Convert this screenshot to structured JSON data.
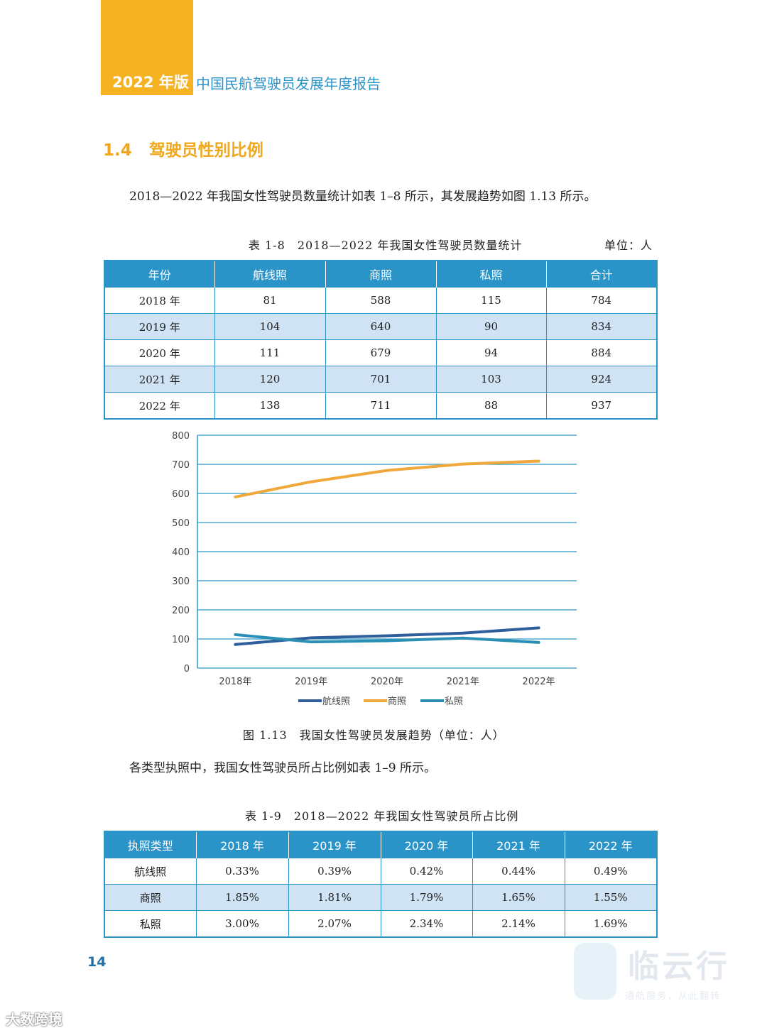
{
  "header": {
    "edition": "2022 年版",
    "report_title": "中国民航驾驶员发展年度报告"
  },
  "section": {
    "number": "1.4",
    "title": "驾驶员性别比例"
  },
  "intro_text": "2018—2022 年我国女性驾驶员数量统计如表 1–8 所示，其发展趋势如图 1.13 所示。",
  "table1": {
    "caption": "表 1-8　2018—2022 年我国女性驾驶员数量统计",
    "unit": "单位：人",
    "headers": [
      "年份",
      "航线照",
      "商照",
      "私照",
      "合计"
    ],
    "rows": [
      [
        "2018 年",
        "81",
        "588",
        "115",
        "784"
      ],
      [
        "2019 年",
        "104",
        "640",
        "90",
        "834"
      ],
      [
        "2020 年",
        "111",
        "679",
        "94",
        "884"
      ],
      [
        "2021 年",
        "120",
        "701",
        "103",
        "924"
      ],
      [
        "2022 年",
        "138",
        "711",
        "88",
        "937"
      ]
    ]
  },
  "chart_data": {
    "type": "line",
    "title": "",
    "xlabel": "",
    "ylabel": "",
    "categories": [
      "2018年",
      "2019年",
      "2020年",
      "2021年",
      "2022年"
    ],
    "ylim": [
      0,
      800
    ],
    "yticks": [
      0,
      100,
      200,
      300,
      400,
      500,
      600,
      700,
      800
    ],
    "grid": true,
    "legend_position": "bottom",
    "series": [
      {
        "name": "航线照",
        "color": "#2f5f9b",
        "values": [
          81,
          104,
          111,
          120,
          138
        ]
      },
      {
        "name": "商照",
        "color": "#f0a83c",
        "values": [
          588,
          640,
          679,
          701,
          711
        ]
      },
      {
        "name": "私照",
        "color": "#2b8fb3",
        "values": [
          115,
          90,
          94,
          103,
          88
        ]
      }
    ]
  },
  "figure_caption": "图 1.13　我国女性驾驶员发展趋势（单位：人）",
  "ratio_text": "各类型执照中，我国女性驾驶员所占比例如表 1–9 所示。",
  "table2": {
    "caption": "表 1-9　2018—2022 年我国女性驾驶员所占比例",
    "headers": [
      "执照类型",
      "2018 年",
      "2019 年",
      "2020 年",
      "2021 年",
      "2022 年"
    ],
    "rows": [
      [
        "航线照",
        "0.33%",
        "0.39%",
        "0.42%",
        "0.44%",
        "0.49%"
      ],
      [
        "商照",
        "1.85%",
        "1.81%",
        "1.79%",
        "1.65%",
        "1.55%"
      ],
      [
        "私照",
        "3.00%",
        "2.07%",
        "2.34%",
        "2.14%",
        "1.69%"
      ]
    ]
  },
  "page_number": "14",
  "watermark": {
    "brand": "临云行",
    "slogan": "通航服务，从此翻转",
    "source": "大数跨境"
  },
  "colors": {
    "accent_orange": "#f5b323",
    "accent_blue": "#2a93c8"
  }
}
